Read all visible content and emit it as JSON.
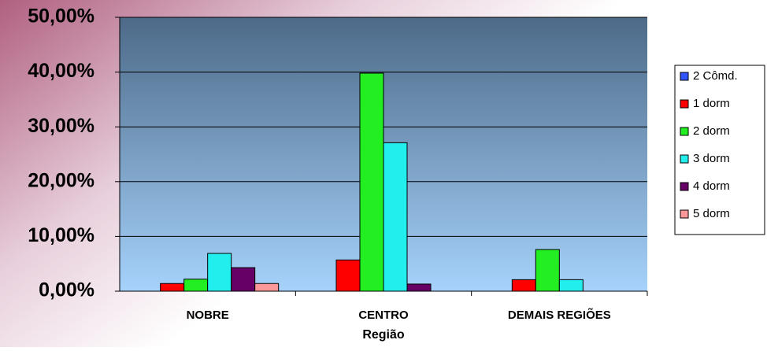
{
  "chart_data": {
    "type": "bar",
    "x_label": "Região",
    "categories": [
      "NOBRE",
      "CENTRO",
      "DEMAIS REGIÕES"
    ],
    "series": [
      {
        "name": "2 Cômd.",
        "color": "#3355ff",
        "values": [
          0,
          0,
          0
        ]
      },
      {
        "name": "1 dorm",
        "color": "#ff0000",
        "values": [
          1.4,
          5.7,
          2.1
        ]
      },
      {
        "name": "2 dorm",
        "color": "#22ee22",
        "values": [
          2.2,
          39.8,
          7.6
        ]
      },
      {
        "name": "3 dorm",
        "color": "#22eeee",
        "values": [
          6.9,
          27.1,
          2.1
        ]
      },
      {
        "name": "4 dorm",
        "color": "#660066",
        "values": [
          4.3,
          1.3,
          0
        ]
      },
      {
        "name": "5 dorm",
        "color": "#ff9999",
        "values": [
          1.4,
          0,
          0
        ]
      }
    ],
    "ylim": [
      0,
      50
    ],
    "yticks": [
      {
        "value": 0,
        "label": "0,00%"
      },
      {
        "value": 10,
        "label": "10,00%"
      },
      {
        "value": 20,
        "label": "20,00%"
      },
      {
        "value": 30,
        "label": "30,00%"
      },
      {
        "value": 40,
        "label": "40,00%"
      },
      {
        "value": 50,
        "label": "50,00%"
      }
    ],
    "grid": true,
    "legend": "right"
  }
}
